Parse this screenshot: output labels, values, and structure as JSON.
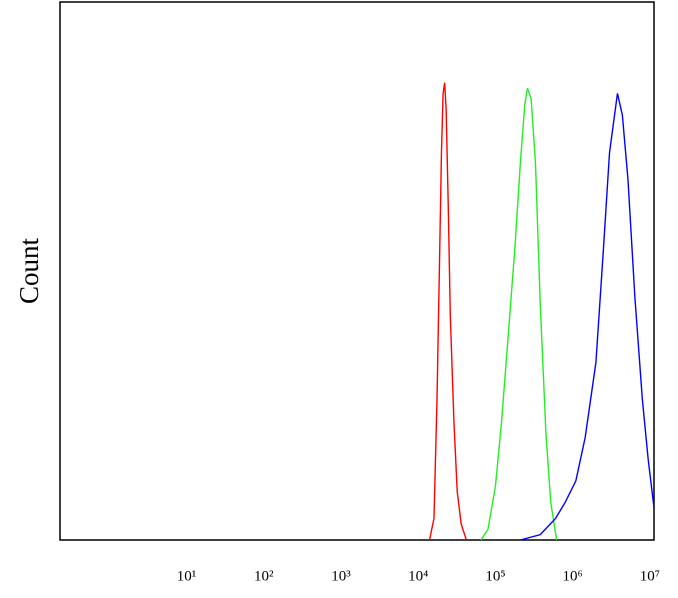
{
  "chart_data": {
    "type": "line",
    "y_label": "Count",
    "log_x": true,
    "xlim": [
      0.23,
      11300000
    ],
    "ylim": [
      0,
      100
    ],
    "xticks": [
      {
        "value": 10,
        "label": "10¹"
      },
      {
        "value": 100,
        "label": "10²"
      },
      {
        "value": 1000,
        "label": "10³"
      },
      {
        "value": 10000,
        "label": "10⁴"
      },
      {
        "value": 100000,
        "label": "10⁵"
      },
      {
        "value": 1000000,
        "label": "10⁶"
      },
      {
        "value": 10000000,
        "label": "10⁷"
      }
    ],
    "series": [
      {
        "color": "#ff0000",
        "x": [
          14000,
          16000,
          17500,
          19000,
          20000,
          21000,
          22000,
          23000,
          24500,
          26000,
          29000,
          32000,
          36000,
          42000
        ],
        "values": [
          0,
          4,
          26,
          54,
          72,
          83,
          85,
          80,
          62,
          42,
          22,
          9,
          3,
          0
        ]
      },
      {
        "color": "#22ee22",
        "x": [
          65000,
          80000,
          100000,
          120000,
          150000,
          180000,
          210000,
          240000,
          260000,
          290000,
          330000,
          380000,
          450000,
          520000,
          620000
        ],
        "values": [
          0,
          2,
          10,
          22,
          40,
          55,
          70,
          81,
          84,
          82,
          70,
          44,
          20,
          7,
          0
        ]
      },
      {
        "color": "#0000ff",
        "x": [
          210000,
          380000,
          600000,
          800000,
          1100000,
          1450000,
          2000000,
          2500000,
          3000000,
          3800000,
          4400000,
          5200000,
          6400000,
          8000000,
          9500000,
          11300000
        ],
        "values": [
          0,
          1,
          4,
          7,
          11,
          19,
          33,
          54,
          72,
          83,
          79,
          67,
          45,
          26,
          15,
          6
        ]
      }
    ]
  }
}
